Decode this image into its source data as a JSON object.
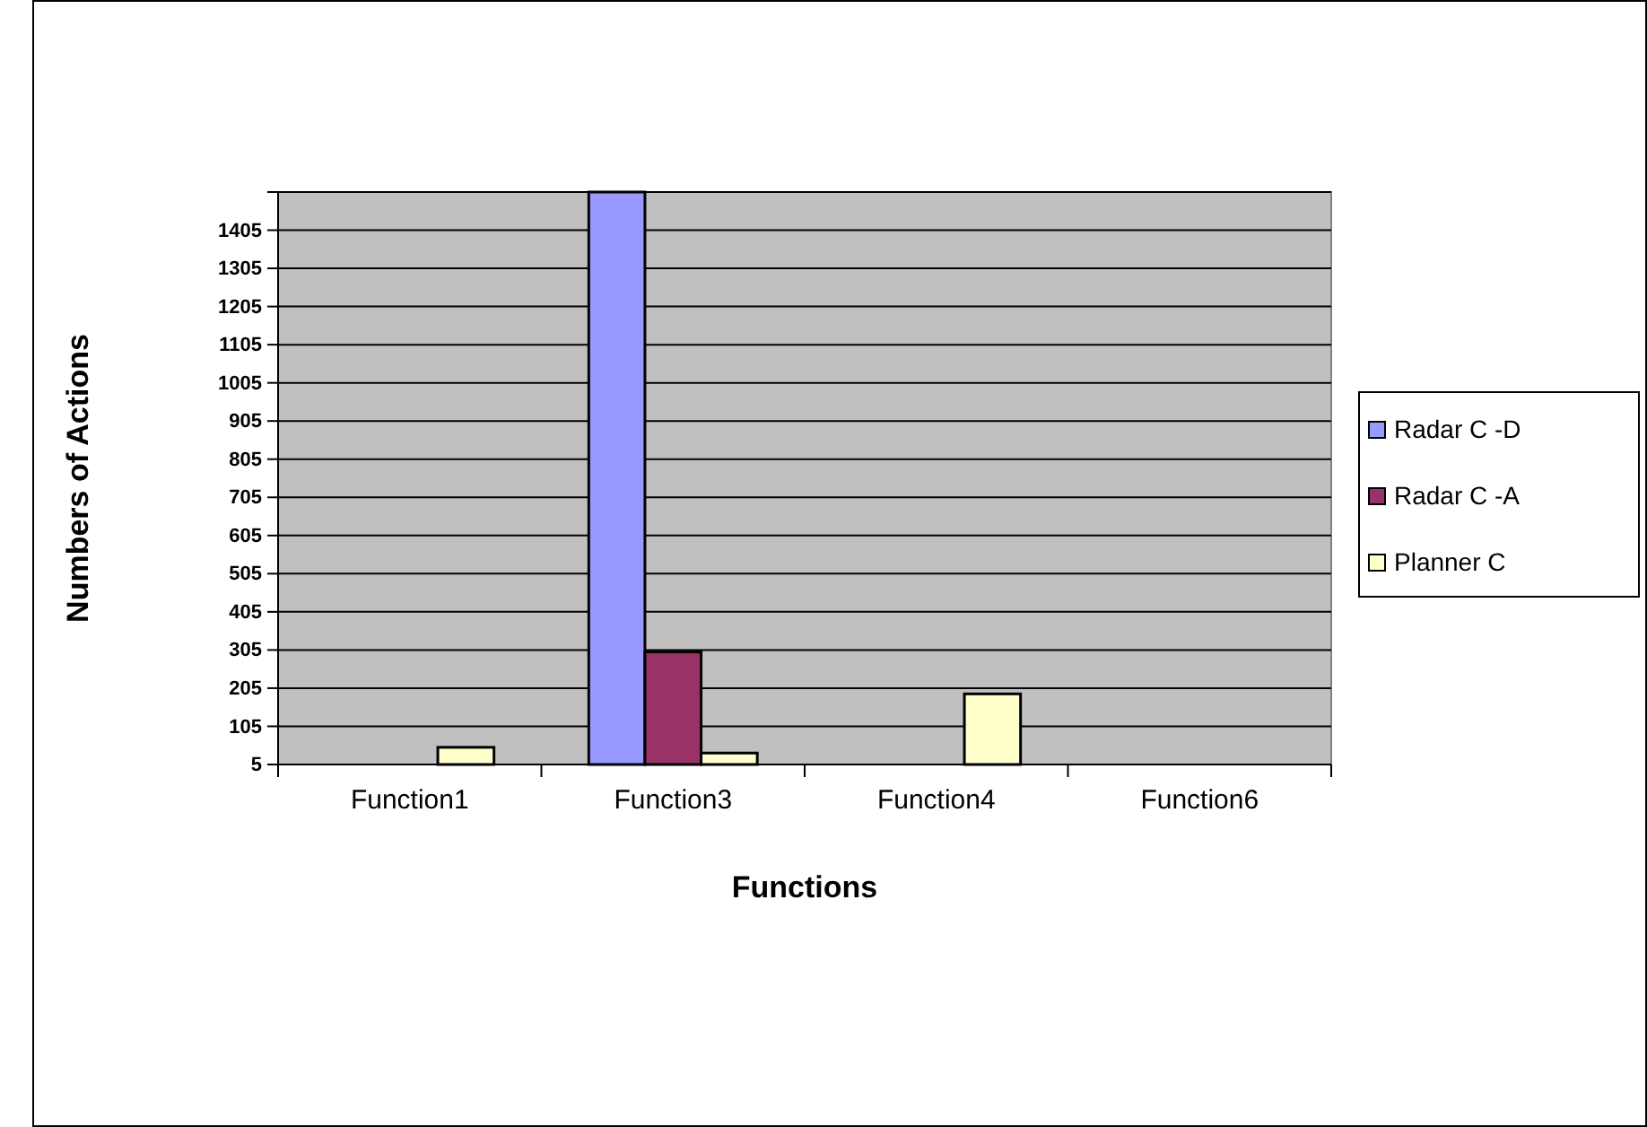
{
  "chart_data": {
    "type": "bar",
    "xlabel": "Functions",
    "ylabel": "Numbers of Actions",
    "categories": [
      "Function1",
      "Function3",
      "Function4",
      "Function6"
    ],
    "series": [
      {
        "name": "Radar C -D",
        "color": "#9999ff",
        "values": [
          null,
          1505,
          null,
          null
        ]
      },
      {
        "name": "Radar C -A",
        "color": "#993366",
        "values": [
          null,
          300,
          null,
          null
        ]
      },
      {
        "name": "Planner C",
        "color": "#ffffcc",
        "values": [
          50,
          35,
          190,
          null
        ]
      }
    ],
    "ylim": [
      5,
      1505
    ],
    "yticks": [
      5,
      105,
      205,
      305,
      405,
      505,
      605,
      705,
      805,
      905,
      1005,
      1105,
      1205,
      1305,
      1405,
      {
        "value": 1505,
        "label": null
      }
    ],
    "grid": "y",
    "legend": "right"
  }
}
